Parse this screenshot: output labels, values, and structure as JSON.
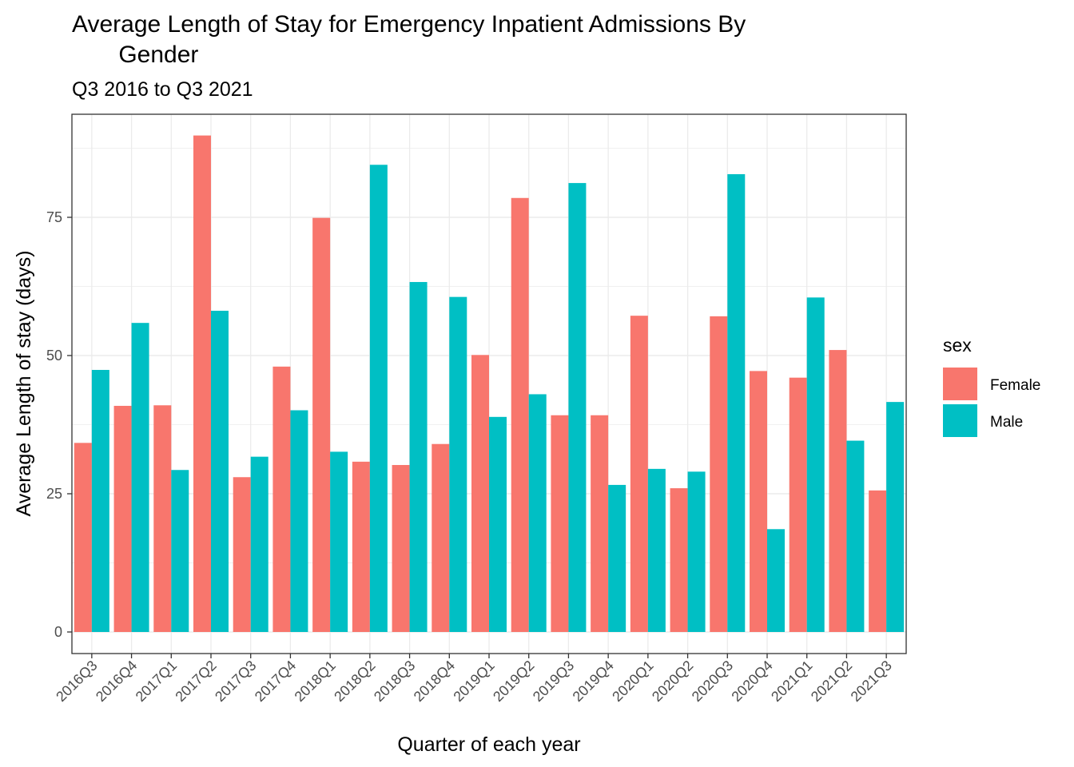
{
  "chart_data": {
    "type": "bar",
    "title": "Average Length of Stay for Emergency Inpatient Admissions By\n       Gender",
    "subtitle": "Q3 2016 to Q3 2021",
    "xlabel": "Quarter of each year",
    "ylabel": "Average Length of stay (days)",
    "ylim": [
      -4.2,
      94.5
    ],
    "yticks": [
      0,
      25,
      50,
      75
    ],
    "grid": true,
    "legend": {
      "title": "sex",
      "position": "right"
    },
    "categories": [
      "2016Q3",
      "2016Q4",
      "2017Q1",
      "2017Q2",
      "2017Q3",
      "2017Q4",
      "2018Q1",
      "2018Q2",
      "2018Q3",
      "2018Q4",
      "2019Q1",
      "2019Q2",
      "2019Q3",
      "2019Q4",
      "2020Q1",
      "2020Q2",
      "2020Q3",
      "2020Q4",
      "2021Q1",
      "2021Q2",
      "2021Q3"
    ],
    "series": [
      {
        "name": "Female",
        "color": "#F8766D",
        "values": [
          34.2,
          40.9,
          41.0,
          89.8,
          28.0,
          48.0,
          74.9,
          30.8,
          30.2,
          34.0,
          50.1,
          78.5,
          39.2,
          39.2,
          57.2,
          26.0,
          57.1,
          47.2,
          46.0,
          51.0,
          25.6
        ]
      },
      {
        "name": "Male",
        "color": "#00BFC4",
        "values": [
          47.4,
          55.9,
          29.3,
          58.1,
          31.7,
          40.1,
          32.6,
          84.5,
          63.3,
          60.6,
          38.9,
          43.0,
          81.2,
          26.6,
          29.5,
          29.0,
          82.8,
          18.6,
          60.5,
          34.6,
          41.6
        ]
      }
    ]
  }
}
